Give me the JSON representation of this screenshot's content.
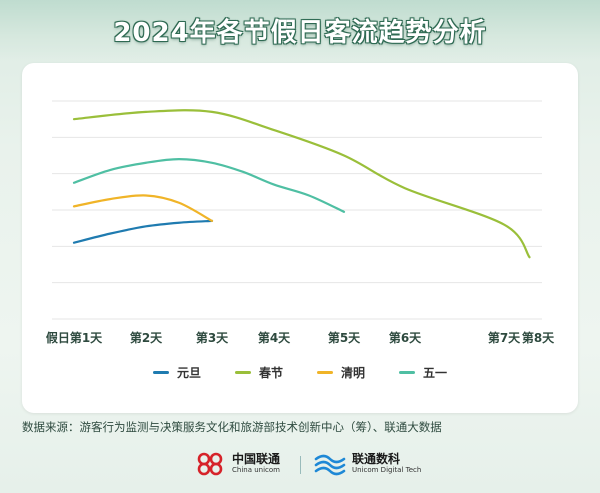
{
  "title": "2024年各节假日客流趋势分析",
  "source": "数据来源：游客行为监测与决策服务文化和旅游部技术创新中心（筹）、联通大数据",
  "logos": {
    "china_unicom": {
      "name": "中国联通",
      "sub": "China unicom",
      "color": "#d6232a"
    },
    "unicom_digital": {
      "name": "联通数科",
      "sub": "Unicom Digital Tech",
      "color": "#1e88d6"
    }
  },
  "chart_data": {
    "type": "line",
    "title": "2024年各节假日客流趋势分析",
    "x_categories": [
      "假日第1天",
      "第2天",
      "第3天",
      "第4天",
      "第5天",
      "第6天",
      "第7天",
      "第8天"
    ],
    "x": [
      1,
      2,
      3,
      4,
      5,
      6,
      7,
      8
    ],
    "xlim": [
      1,
      8
    ],
    "ylim": [
      0,
      6
    ],
    "y_axis_labels_shown": false,
    "grid": "horizontal",
    "legend_position": "bottom",
    "series": [
      {
        "name": "元旦",
        "color": "#1f7bb0",
        "x": [
          1,
          1.5,
          2,
          2.5,
          3
        ],
        "values": [
          2.1,
          2.35,
          2.55,
          2.65,
          2.7
        ]
      },
      {
        "name": "春节",
        "color": "#9abf3a",
        "x": [
          1,
          2,
          3,
          4,
          5,
          6,
          7,
          7.75
        ],
        "values": [
          5.5,
          5.7,
          5.7,
          5.2,
          4.5,
          3.6,
          2.6,
          1.7
        ]
      },
      {
        "name": "清明",
        "color": "#f0b428",
        "x": [
          1,
          1.5,
          2,
          2.5,
          3
        ],
        "values": [
          3.1,
          3.3,
          3.4,
          3.2,
          2.7
        ]
      },
      {
        "name": "五一",
        "color": "#4fbfa3",
        "x": [
          1,
          1.5,
          2,
          2.5,
          3,
          3.5,
          4,
          4.5,
          5
        ],
        "values": [
          3.75,
          4.1,
          4.3,
          4.4,
          4.3,
          4.05,
          3.7,
          3.4,
          2.95
        ]
      }
    ]
  }
}
